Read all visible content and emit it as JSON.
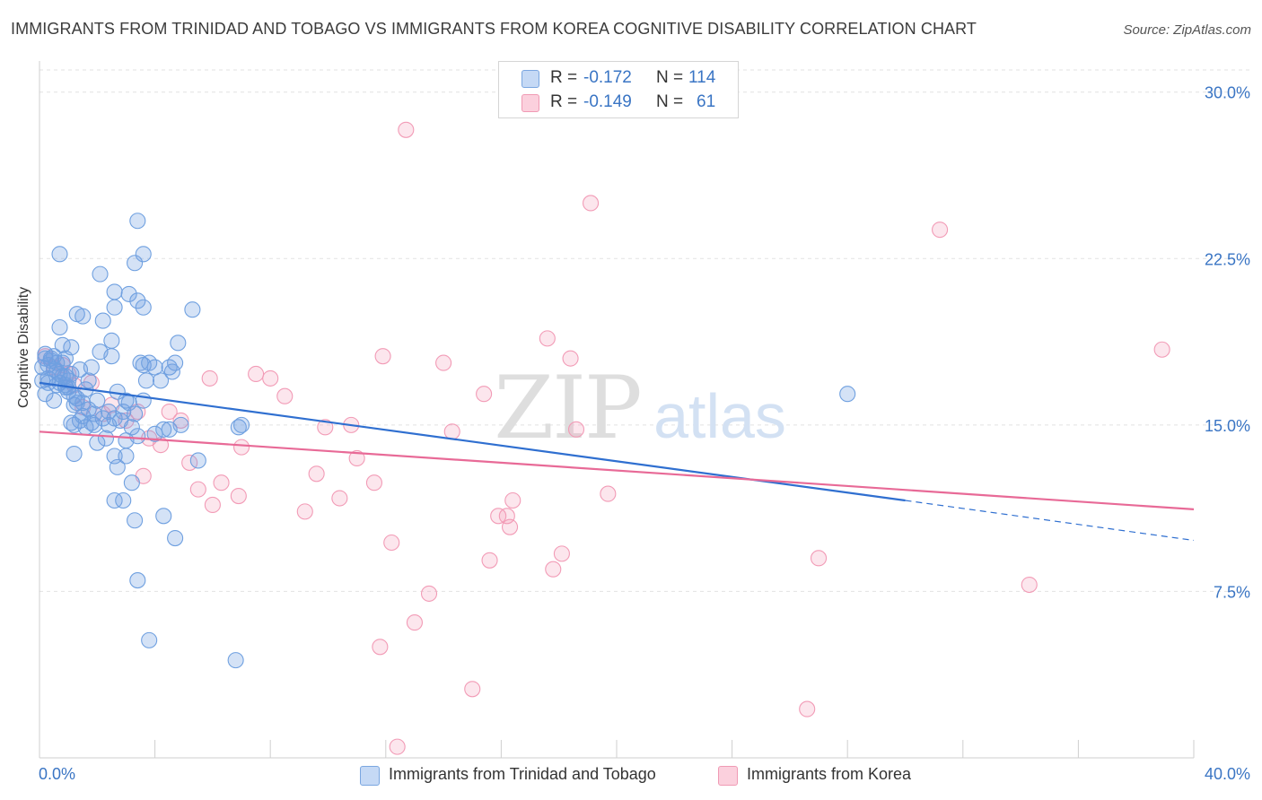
{
  "header": {
    "title": "IMMIGRANTS FROM TRINIDAD AND TOBAGO VS IMMIGRANTS FROM KOREA COGNITIVE DISABILITY CORRELATION CHART",
    "source": "Source: ZipAtlas.com"
  },
  "watermark": {
    "zip": "ZIP",
    "atlas": "atlas"
  },
  "legend_top": {
    "rows": [
      {
        "r_label": "R =",
        "r_value": "-0.172",
        "n_label": "N =",
        "n_value": "114"
      },
      {
        "r_label": "R =",
        "r_value": "-0.149",
        "n_label": "N =",
        "n_value": "61"
      }
    ]
  },
  "legend_bottom": {
    "items": [
      "Immigrants from Trinidad and Tobago",
      "Immigrants from Korea"
    ]
  },
  "chart_data": {
    "type": "scatter",
    "title": "IMMIGRANTS FROM TRINIDAD AND TOBAGO VS IMMIGRANTS FROM KOREA COGNITIVE DISABILITY CORRELATION CHART",
    "ylabel": "Cognitive Disability",
    "xlabel": "",
    "xlim": [
      0,
      40
    ],
    "ylim": [
      0,
      31
    ],
    "x_tick_labels": [
      "0.0%",
      "40.0%"
    ],
    "y_ticks": [
      7.5,
      15.0,
      22.5,
      30.0
    ],
    "y_tick_labels": [
      "7.5%",
      "15.0%",
      "22.5%",
      "30.0%"
    ],
    "grid": true,
    "colors": {
      "blue": "#6fa0e0",
      "pink": "#f29bb6",
      "blue_line": "#2f6fd0",
      "pink_line": "#e86a97",
      "tick_text": "#3a75c4"
    },
    "series": [
      {
        "name": "Immigrants from Trinidad and Tobago",
        "color": "#6fa0e0",
        "r": -0.172,
        "n": 114,
        "trend": {
          "x0": 0,
          "y0": 16.9,
          "x1": 30,
          "y1": 11.6,
          "dash_x1": 40,
          "dash_y1": 9.8
        },
        "points": [
          [
            0.1,
            17.6
          ],
          [
            0.2,
            18.2
          ],
          [
            0.3,
            17.1
          ],
          [
            0.4,
            18.0
          ],
          [
            0.5,
            17.5
          ],
          [
            0.6,
            16.8
          ],
          [
            0.7,
            17.3
          ],
          [
            0.8,
            17.8
          ],
          [
            0.2,
            16.4
          ],
          [
            0.4,
            17.9
          ],
          [
            0.5,
            16.1
          ],
          [
            0.6,
            17.4
          ],
          [
            0.7,
            16.9
          ],
          [
            0.8,
            17.2
          ],
          [
            0.9,
            16.7
          ],
          [
            1.0,
            17.0
          ],
          [
            0.3,
            17.7
          ],
          [
            0.9,
            18.0
          ],
          [
            1.0,
            16.5
          ],
          [
            1.1,
            17.3
          ],
          [
            1.2,
            15.9
          ],
          [
            1.3,
            16.2
          ],
          [
            1.4,
            17.5
          ],
          [
            1.5,
            16.0
          ],
          [
            1.1,
            18.5
          ],
          [
            1.2,
            15.0
          ],
          [
            1.3,
            16.0
          ],
          [
            1.4,
            15.2
          ],
          [
            1.5,
            15.4
          ],
          [
            1.6,
            16.6
          ],
          [
            1.7,
            15.7
          ],
          [
            1.8,
            17.6
          ],
          [
            1.9,
            15.5
          ],
          [
            2.0,
            16.1
          ],
          [
            2.1,
            18.3
          ],
          [
            2.2,
            15.3
          ],
          [
            2.3,
            14.4
          ],
          [
            2.4,
            15.0
          ],
          [
            2.5,
            18.1
          ],
          [
            2.6,
            15.3
          ],
          [
            2.7,
            16.5
          ],
          [
            2.8,
            15.2
          ],
          [
            2.9,
            15.6
          ],
          [
            3.0,
            14.3
          ],
          [
            3.1,
            16.0
          ],
          [
            3.2,
            14.9
          ],
          [
            3.3,
            15.5
          ],
          [
            3.4,
            14.5
          ],
          [
            3.5,
            17.8
          ],
          [
            3.6,
            17.7
          ],
          [
            3.7,
            17.0
          ],
          [
            3.8,
            17.8
          ],
          [
            4.3,
            14.8
          ],
          [
            4.0,
            14.6
          ],
          [
            4.5,
            14.8
          ],
          [
            4.9,
            15.0
          ],
          [
            0.7,
            19.4
          ],
          [
            0.8,
            18.6
          ],
          [
            1.3,
            20.0
          ],
          [
            1.5,
            19.9
          ],
          [
            2.2,
            19.7
          ],
          [
            2.6,
            20.3
          ],
          [
            2.5,
            18.8
          ],
          [
            3.1,
            20.9
          ],
          [
            3.4,
            20.6
          ],
          [
            3.6,
            20.3
          ],
          [
            2.1,
            21.8
          ],
          [
            3.3,
            22.3
          ],
          [
            3.6,
            22.7
          ],
          [
            3.4,
            24.2
          ],
          [
            0.7,
            22.7
          ],
          [
            2.6,
            21.0
          ],
          [
            5.3,
            20.2
          ],
          [
            4.8,
            18.7
          ],
          [
            1.2,
            13.7
          ],
          [
            2.7,
            13.1
          ],
          [
            3.2,
            12.4
          ],
          [
            3.0,
            13.6
          ],
          [
            2.6,
            13.6
          ],
          [
            2.6,
            11.6
          ],
          [
            2.9,
            11.6
          ],
          [
            3.3,
            10.7
          ],
          [
            4.3,
            10.9
          ],
          [
            4.7,
            9.9
          ],
          [
            3.4,
            8.0
          ],
          [
            3.8,
            5.3
          ],
          [
            6.8,
            4.4
          ],
          [
            5.5,
            13.4
          ],
          [
            6.9,
            14.9
          ],
          [
            7.0,
            15.0
          ],
          [
            3.6,
            16.1
          ],
          [
            3.0,
            16.1
          ],
          [
            4.6,
            17.4
          ],
          [
            4.2,
            17.0
          ],
          [
            1.0,
            16.7
          ],
          [
            0.3,
            16.9
          ],
          [
            0.6,
            17.8
          ],
          [
            0.9,
            17.2
          ],
          [
            1.1,
            15.1
          ],
          [
            1.9,
            15.0
          ],
          [
            2.4,
            15.6
          ],
          [
            1.6,
            14.9
          ],
          [
            1.8,
            15.1
          ],
          [
            2.0,
            14.2
          ],
          [
            4.0,
            17.6
          ],
          [
            4.7,
            17.8
          ],
          [
            0.2,
            18.0
          ],
          [
            0.5,
            18.1
          ],
          [
            0.9,
            16.8
          ],
          [
            1.2,
            16.3
          ],
          [
            1.7,
            17.0
          ],
          [
            28.0,
            16.4
          ],
          [
            4.5,
            17.6
          ],
          [
            0.1,
            17.0
          ]
        ]
      },
      {
        "name": "Immigrants from Korea",
        "color": "#f29bb6",
        "r": -0.149,
        "n": 61,
        "trend": {
          "x0": 0,
          "y0": 14.7,
          "x1": 40,
          "y1": 11.2
        },
        "points": [
          [
            0.2,
            18.1
          ],
          [
            0.5,
            17.6
          ],
          [
            1.0,
            17.3
          ],
          [
            1.2,
            16.8
          ],
          [
            1.5,
            15.8
          ],
          [
            1.8,
            16.9
          ],
          [
            2.2,
            15.5
          ],
          [
            2.5,
            15.9
          ],
          [
            3.0,
            15.2
          ],
          [
            3.4,
            15.6
          ],
          [
            3.6,
            12.7
          ],
          [
            3.8,
            14.4
          ],
          [
            4.2,
            14.1
          ],
          [
            4.5,
            15.6
          ],
          [
            4.9,
            15.2
          ],
          [
            5.2,
            13.3
          ],
          [
            5.5,
            12.1
          ],
          [
            5.9,
            17.1
          ],
          [
            6.3,
            12.4
          ],
          [
            6.0,
            11.4
          ],
          [
            6.9,
            11.8
          ],
          [
            7.0,
            14.0
          ],
          [
            7.5,
            17.3
          ],
          [
            8.0,
            17.1
          ],
          [
            8.5,
            16.3
          ],
          [
            9.2,
            11.1
          ],
          [
            9.6,
            12.8
          ],
          [
            9.9,
            14.9
          ],
          [
            10.4,
            11.7
          ],
          [
            10.8,
            15.0
          ],
          [
            11.0,
            13.5
          ],
          [
            11.6,
            12.4
          ],
          [
            11.8,
            5.0
          ],
          [
            11.9,
            18.1
          ],
          [
            12.2,
            9.7
          ],
          [
            12.4,
            0.5
          ],
          [
            12.7,
            28.3
          ],
          [
            13.0,
            6.1
          ],
          [
            13.5,
            7.4
          ],
          [
            14.0,
            17.8
          ],
          [
            14.3,
            14.7
          ],
          [
            15.0,
            3.1
          ],
          [
            15.4,
            16.4
          ],
          [
            15.6,
            8.9
          ],
          [
            15.9,
            10.9
          ],
          [
            16.2,
            10.9
          ],
          [
            16.3,
            10.4
          ],
          [
            16.4,
            11.6
          ],
          [
            17.6,
            18.9
          ],
          [
            17.8,
            8.5
          ],
          [
            18.1,
            9.2
          ],
          [
            18.4,
            18.0
          ],
          [
            18.6,
            14.8
          ],
          [
            19.1,
            25.0
          ],
          [
            19.7,
            11.9
          ],
          [
            26.6,
            2.2
          ],
          [
            27.0,
            9.0
          ],
          [
            31.2,
            23.8
          ],
          [
            34.3,
            7.8
          ],
          [
            38.9,
            18.4
          ],
          [
            0.8,
            17.7
          ]
        ]
      }
    ]
  }
}
